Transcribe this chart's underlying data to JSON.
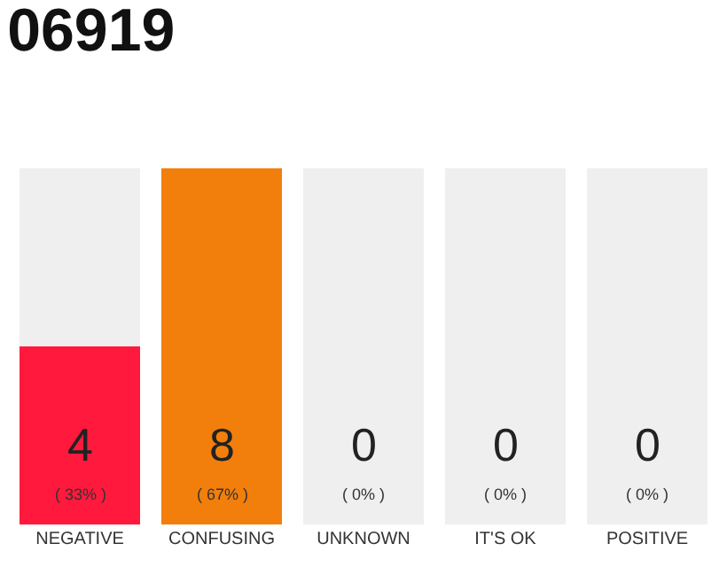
{
  "chart_data": {
    "type": "bar",
    "title": "06919",
    "stacked": true,
    "categories": [
      "NEGATIVE",
      "CONFUSING",
      "UNKNOWN",
      "IT'S OK",
      "POSITIVE"
    ],
    "series": [
      {
        "colors": [
          "#ff1a3d",
          "#f27f0c",
          "#f27f0c",
          "#f27f0c",
          "#f27f0c"
        ],
        "values": [
          4,
          8,
          0,
          0,
          0
        ],
        "value_labels": [
          "4\n( 33% )",
          "8\n( 67% )",
          null,
          null,
          null
        ]
      },
      {
        "color": "#efefef",
        "values": [
          4,
          0,
          8,
          8,
          8
        ]
      }
    ],
    "annotations": [
      {
        "text": "0\n( 0% )",
        "x": "UNKNOWN",
        "y": 0
      },
      {
        "text": "0\n( 0% )",
        "x": "IT'S OK",
        "y": 0
      },
      {
        "text": "0\n( 0% )",
        "x": "POSITIVE",
        "y": 0
      }
    ],
    "ylim": [
      0,
      8
    ]
  }
}
